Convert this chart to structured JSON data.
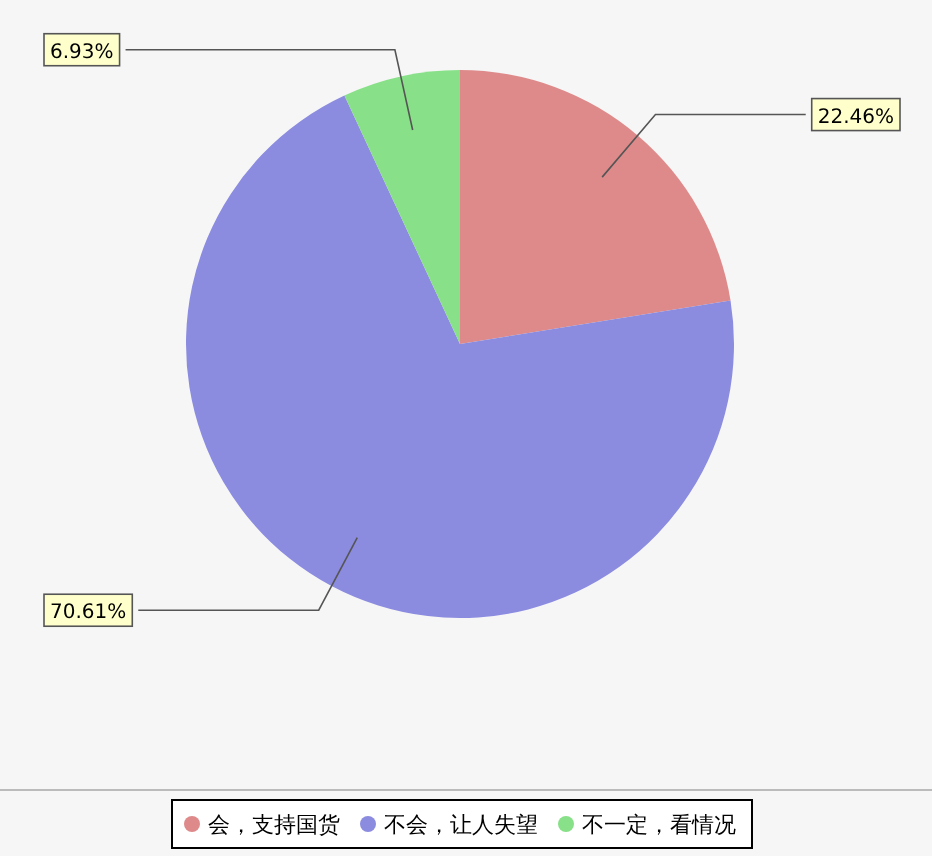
{
  "chart_data": {
    "type": "pie",
    "categories": [
      "会，支持国货",
      "不会，让人失望",
      "不一定，看情况"
    ],
    "values": [
      22.46,
      70.61,
      6.93
    ],
    "value_labels": [
      "22.46%",
      "70.61%",
      "6.93%"
    ],
    "colors": [
      "#de8a8a",
      "#8b8be0",
      "#88e088"
    ],
    "legend": "bottom"
  }
}
